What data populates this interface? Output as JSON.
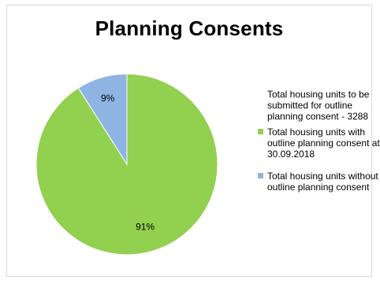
{
  "chart_data": {
    "type": "pie",
    "title": "Planning Consents",
    "legend_placement": "right",
    "legend_note": "Total housing units to be submitted for outline planning consent - 3288",
    "slices": [
      {
        "label": "Total housing units with outline planning consent at 30.09.2018",
        "value": 91,
        "data_label": "91%",
        "color": "#92d050"
      },
      {
        "label": "Total housing units without outline planning consent",
        "value": 9,
        "data_label": "9%",
        "color": "#8eb4e3"
      }
    ]
  }
}
